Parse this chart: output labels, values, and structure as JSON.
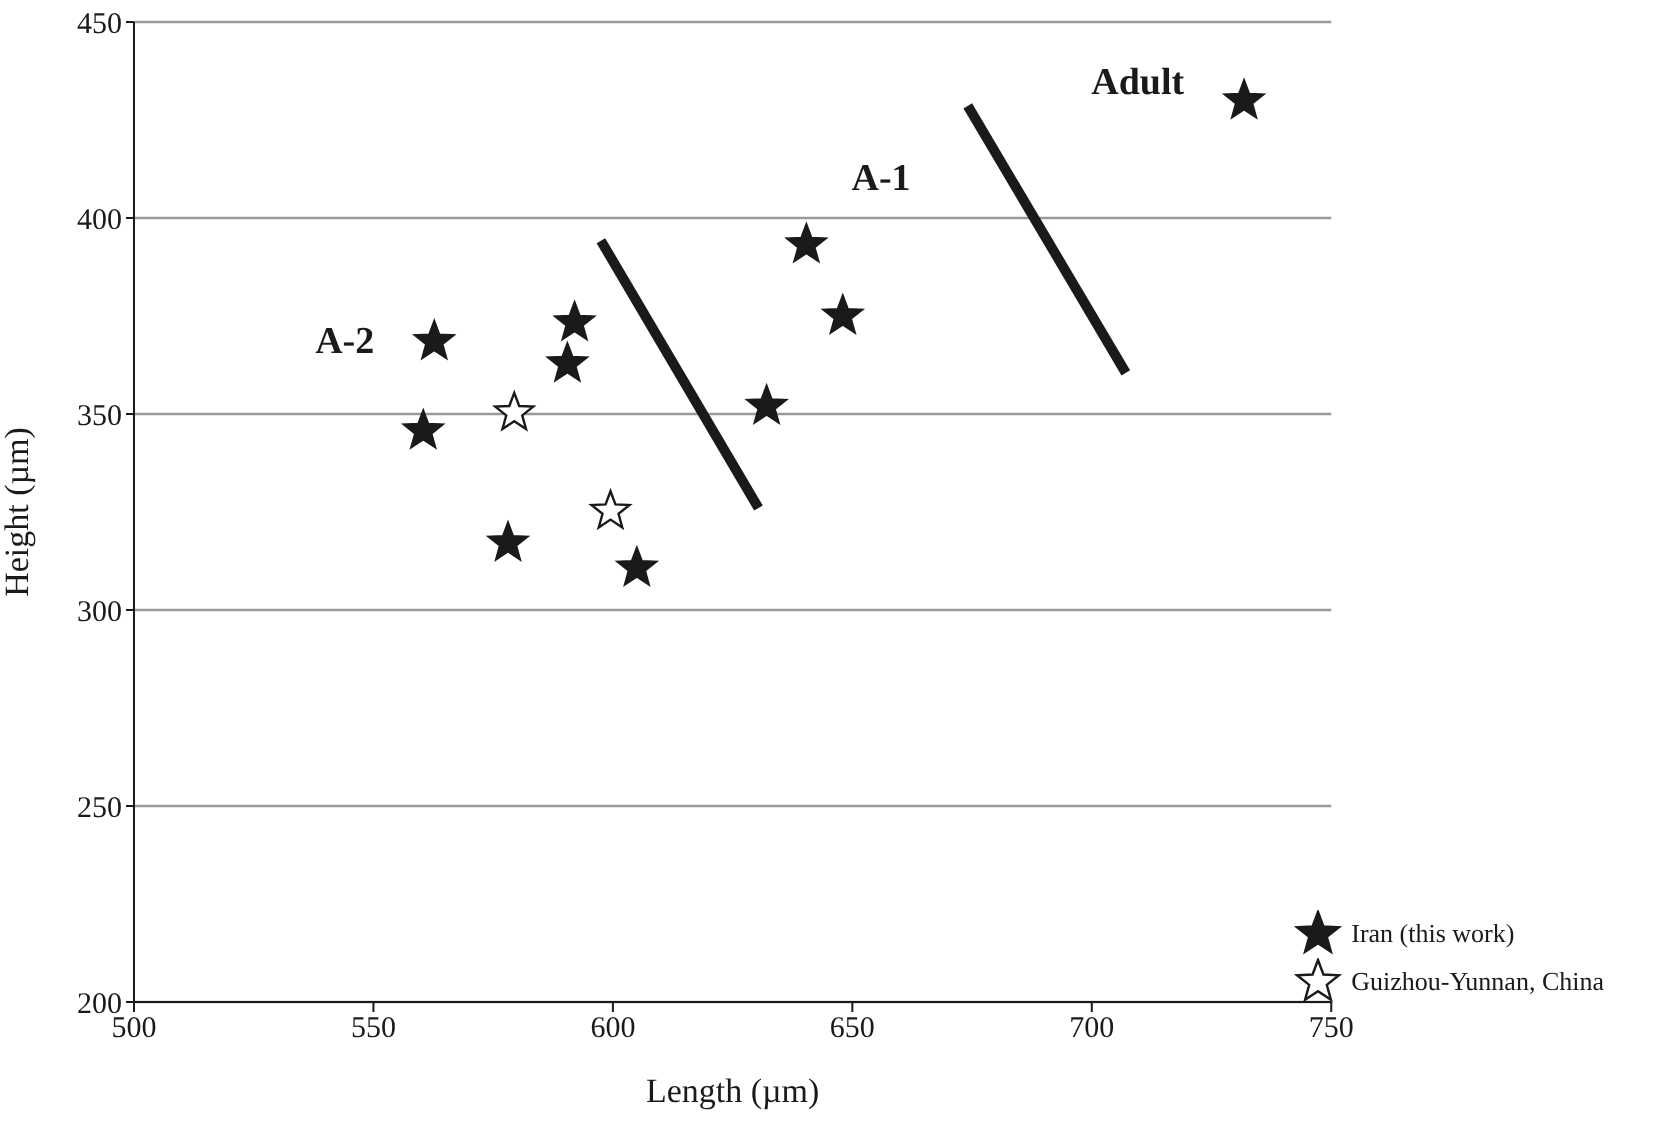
{
  "chart_data": {
    "type": "scatter",
    "xlabel": "Length (µm)",
    "ylabel": "Height (µm)",
    "xlim": [
      500,
      750
    ],
    "xticks": [
      500,
      550,
      600,
      650,
      700,
      750
    ],
    "ylim": [
      200,
      450
    ],
    "yticks": [
      200,
      250,
      300,
      350,
      400,
      450
    ],
    "grid": "y",
    "legend": "bottom right",
    "series": [
      {
        "name": "Iran (this work)",
        "color": "#1a1a1a",
        "marker": "star",
        "x": [
          562.7,
          560.4,
          578.1,
          592,
          590.5,
          605,
          632.1,
          640.4,
          648,
          731.8
        ],
        "values": [
          368.5,
          345.7,
          317.1,
          373.3,
          362.8,
          310.7,
          352,
          393.2,
          375,
          429.9
        ]
      },
      {
        "name": "Guizhou-Yunnan, China",
        "color": "#ffffff",
        "marker": "star",
        "x": [
          579.4,
          599.5
        ],
        "values": [
          350.3,
          325.2
        ]
      },
      {
        "type": "line",
        "color": "#1a1a1a",
        "x": [
          597.5,
          630.4
        ],
        "values": [
          394.2,
          326
        ]
      },
      {
        "type": "line",
        "color": "#1a1a1a",
        "x": [
          674.1,
          707.1
        ],
        "values": [
          428.6,
          360.5
        ]
      }
    ],
    "annotations": [
      "A-2",
      "A-1",
      "Adult"
    ]
  }
}
